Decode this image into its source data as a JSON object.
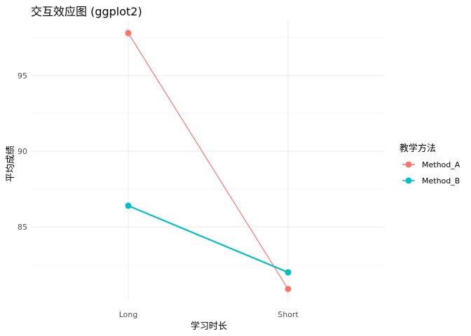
{
  "chart_data": {
    "type": "line",
    "title": "交互效应图 (ggplot2)",
    "xlabel": "学习时长",
    "ylabel": "平均成绩",
    "categories": [
      "Long",
      "Short"
    ],
    "yticks": [
      85,
      90,
      95
    ],
    "ylim": [
      80.2,
      98.6
    ],
    "grid": true,
    "legend": {
      "title": "教学方法",
      "placement": "right"
    },
    "series": [
      {
        "name": "Method_A",
        "values": [
          97.8,
          80.9
        ],
        "color": "#F8766D"
      },
      {
        "name": "Method_B",
        "values": [
          86.4,
          82.0
        ],
        "color": "#00BFC4"
      }
    ]
  }
}
